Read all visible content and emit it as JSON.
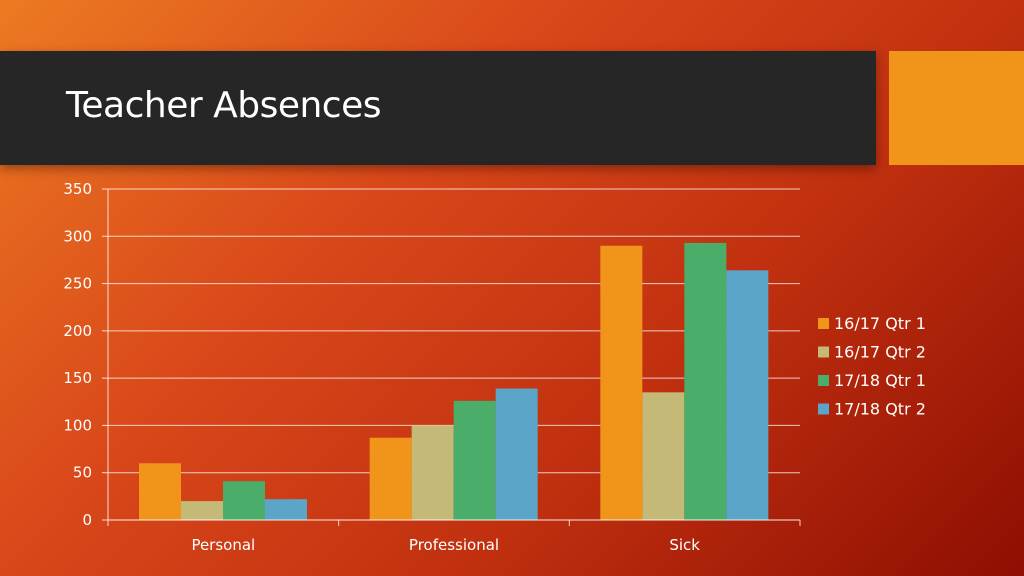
{
  "slide": {
    "title": "Teacher Absences",
    "colors": {
      "title_bar": "#262626",
      "accent": "#f1951a"
    }
  },
  "chart_data": {
    "type": "bar",
    "title": "Teacher Absences",
    "xlabel": "",
    "ylabel": "",
    "categories": [
      "Personal",
      "Professional",
      "Sick"
    ],
    "series": [
      {
        "name": "16/17 Qtr 1",
        "color": "#f1951a",
        "values": [
          60,
          87,
          290
        ]
      },
      {
        "name": "16/17 Qtr 2",
        "color": "#c4b976",
        "values": [
          20,
          100,
          135
        ]
      },
      {
        "name": "17/18 Qtr 1",
        "color": "#4aad6a",
        "values": [
          41,
          126,
          293
        ]
      },
      {
        "name": "17/18 Qtr 2",
        "color": "#5ba5c9",
        "values": [
          22,
          139,
          264
        ]
      }
    ],
    "ylim": [
      0,
      350
    ],
    "yticks": [
      0,
      50,
      100,
      150,
      200,
      250,
      300,
      350
    ],
    "grid": true,
    "legend": "right"
  }
}
